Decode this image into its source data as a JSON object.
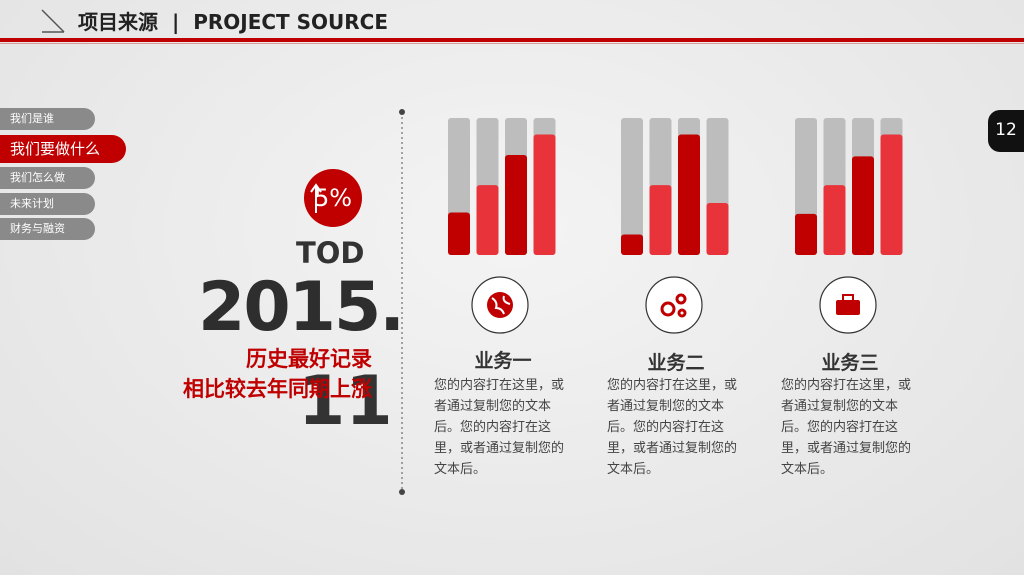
{
  "header": {
    "title_cn": "项目来源",
    "separator": "|",
    "title_en": "PROJECT SOURCE"
  },
  "page_number": "12",
  "nav": {
    "items": [
      "我们是谁",
      "我们要做什么",
      "我们怎么做",
      "未来计划",
      "财务与融资"
    ],
    "active": 1
  },
  "stat": {
    "percent": "5%",
    "label": "TOD",
    "year": "2015.",
    "day": "11",
    "lines": [
      "历史最好记录",
      "相比较去年同期上涨"
    ]
  },
  "ylim": [
    0,
    100
  ],
  "groups": [
    {
      "values": [
        31,
        51,
        73,
        88
      ],
      "title": "业务一",
      "text": "您的内容打在这里，或者通过复制您的文本后。您的内容打在这里，或者通过复制您的文本后。"
    },
    {
      "values": [
        15,
        51,
        88,
        38
      ],
      "title": "业务二",
      "text": "您的内容打在这里，或者通过复制您的文本后。您的内容打在这里，或者通过复制您的文本后。"
    },
    {
      "values": [
        30,
        51,
        72,
        88
      ],
      "title": "业务三",
      "text": "您的内容打在这里，或者通过复制您的文本后。您的内容打在这里，或者通过复制您的文本后。"
    }
  ]
}
